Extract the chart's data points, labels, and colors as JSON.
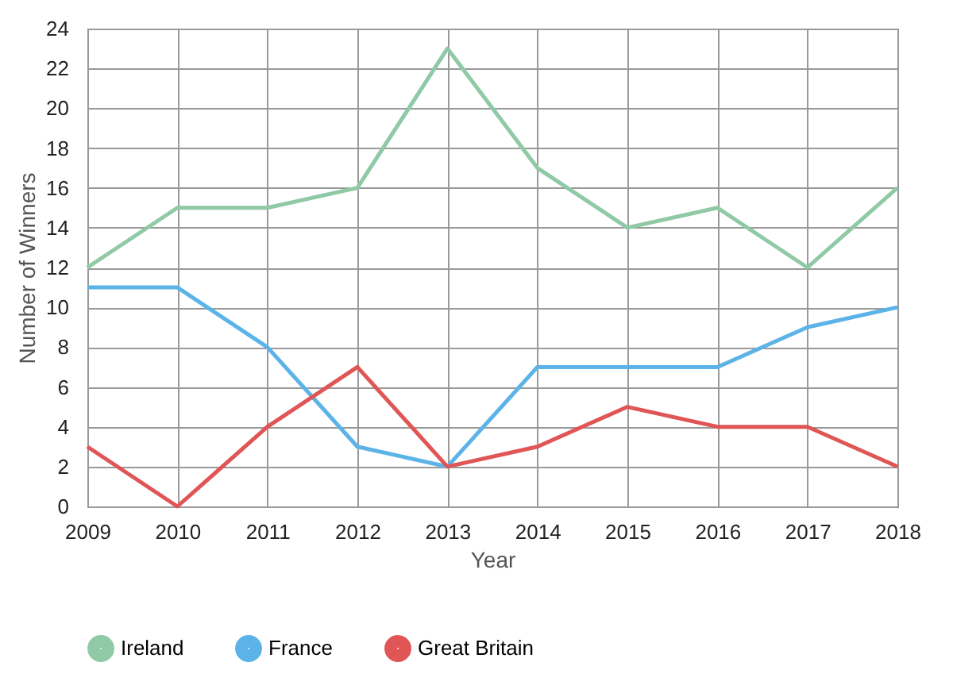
{
  "chart_data": {
    "type": "line",
    "xlabel": "Year",
    "ylabel": "Number of Winners",
    "x": [
      2009,
      2010,
      2011,
      2012,
      2013,
      2014,
      2015,
      2016,
      2017,
      2018
    ],
    "xlim": [
      2009,
      2018
    ],
    "xticks": [
      2009,
      2010,
      2011,
      2012,
      2013,
      2014,
      2015,
      2016,
      2017,
      2018
    ],
    "ylim": [
      0,
      24
    ],
    "yticks": [
      0,
      2,
      4,
      6,
      8,
      10,
      12,
      14,
      16,
      18,
      20,
      22,
      24
    ],
    "grid": true,
    "legend": "bottom",
    "marker": "none",
    "line_style": "solid",
    "series": [
      {
        "name": "Ireland",
        "color": "#8fc9a5",
        "values": [
          12,
          15,
          15,
          16,
          23,
          17,
          14,
          15,
          12,
          16
        ]
      },
      {
        "name": "France",
        "color": "#5cb3e8",
        "values": [
          11,
          11,
          8,
          3,
          2,
          7,
          7,
          7,
          9,
          10
        ]
      },
      {
        "name": "Great Britain",
        "color": "#e05555",
        "values": [
          3,
          0,
          4,
          7,
          2,
          3,
          5,
          4,
          4,
          2
        ]
      }
    ]
  }
}
